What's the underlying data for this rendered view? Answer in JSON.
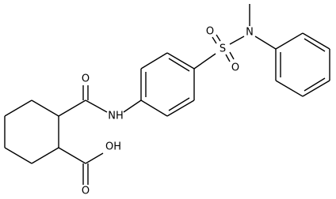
{
  "atoms": [
    {
      "label": "O"
    },
    {
      "label": "NH"
    },
    {
      "label": "S"
    },
    {
      "label": "O"
    },
    {
      "label": "O"
    },
    {
      "label": "N"
    },
    {
      "label": "OH"
    },
    {
      "label": "O"
    }
  ]
}
